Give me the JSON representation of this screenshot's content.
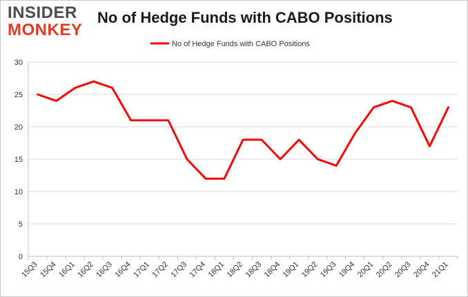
{
  "logo": {
    "line1": "INSIDER",
    "line2": "MONKEY"
  },
  "chart_data": {
    "type": "line",
    "title": "No of Hedge Funds with CABO Positions",
    "xlabel": "",
    "ylabel": "",
    "ylim": [
      0,
      30
    ],
    "yticks": [
      0,
      5,
      10,
      15,
      20,
      25,
      30
    ],
    "grid": true,
    "legend_position": "top-center",
    "categories": [
      "15Q3",
      "15Q4",
      "16Q1",
      "16Q2",
      "16Q3",
      "16Q4",
      "17Q1",
      "17Q2",
      "17Q3",
      "17Q4",
      "18Q1",
      "18Q2",
      "18Q3",
      "18Q4",
      "19Q1",
      "19Q2",
      "19Q3",
      "19Q4",
      "20Q1",
      "20Q2",
      "20Q3",
      "20Q4",
      "21Q1"
    ],
    "series": [
      {
        "name": "No of Hedge Funds with CABO Positions",
        "color": "#ff0000",
        "values": [
          25,
          24,
          26,
          27,
          26,
          21,
          21,
          21,
          15,
          12,
          12,
          18,
          18,
          15,
          18,
          15,
          14,
          19,
          23,
          24,
          23,
          17,
          23
        ]
      }
    ]
  }
}
